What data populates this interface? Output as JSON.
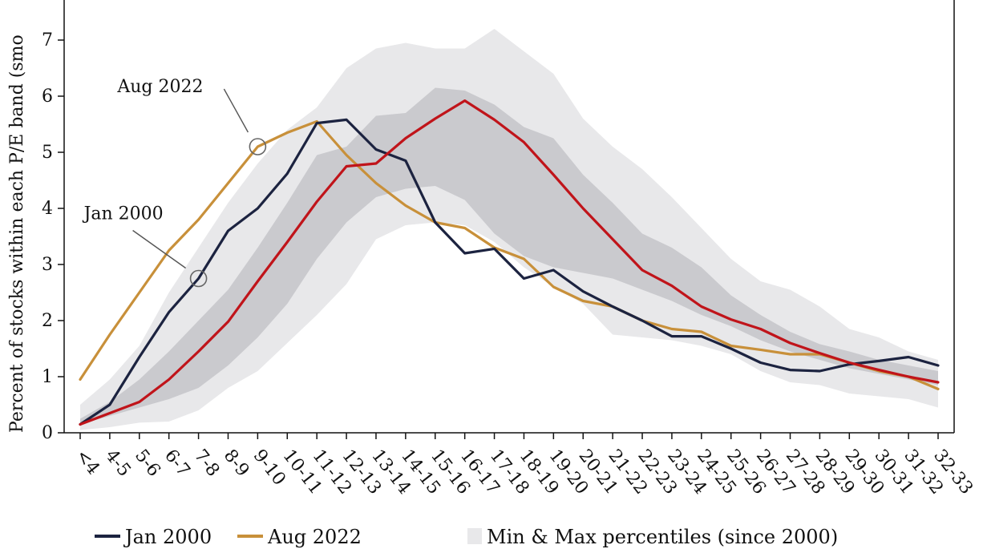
{
  "chart_data": {
    "type": "line",
    "ylabel": "Percent of stocks within each P/E band (smo",
    "ylim": [
      0,
      7.7
    ],
    "yticks": [
      "0",
      "1",
      "2",
      "3",
      "4",
      "5",
      "6",
      "7"
    ],
    "categories": [
      "<4",
      "4-5",
      "5-6",
      "6-7",
      "7-8",
      "8-9",
      "9-10",
      "10-11",
      "11-12",
      "12-13",
      "13-14",
      "14-15",
      "15-16",
      "16-17",
      "17-18",
      "18-19",
      "19-20",
      "20-21",
      "21-22",
      "22-23",
      "23-24",
      "24-25",
      "25-26",
      "26-27",
      "27-28",
      "28-29",
      "29-30",
      "30-31",
      "31-32",
      "32-33"
    ],
    "series": [
      {
        "name": "Jan 2000",
        "color": "#1c2340",
        "values": [
          0.15,
          0.5,
          1.35,
          2.15,
          2.75,
          3.6,
          4.0,
          4.62,
          5.52,
          5.58,
          5.05,
          4.85,
          3.75,
          3.2,
          3.28,
          2.75,
          2.9,
          2.52,
          2.25,
          2.0,
          1.72,
          1.72,
          1.5,
          1.25,
          1.12,
          1.1,
          1.22,
          1.28,
          1.35,
          1.2
        ]
      },
      {
        "name": "Aug 2022",
        "color": "#c8903a",
        "values": [
          0.95,
          1.75,
          2.5,
          3.25,
          3.8,
          4.45,
          5.1,
          5.35,
          5.55,
          4.95,
          4.45,
          4.05,
          3.75,
          3.65,
          3.3,
          3.1,
          2.6,
          2.35,
          2.25,
          2.0,
          1.85,
          1.8,
          1.55,
          1.48,
          1.4,
          1.4,
          1.25,
          1.1,
          1.0,
          0.78
        ]
      },
      {
        "name": "",
        "color": "#c0141a",
        "values": [
          0.15,
          0.35,
          0.55,
          0.95,
          1.45,
          1.98,
          2.7,
          3.4,
          4.12,
          4.75,
          4.8,
          5.25,
          5.6,
          5.92,
          5.58,
          5.18,
          4.6,
          4.0,
          3.45,
          2.9,
          2.62,
          2.25,
          2.02,
          1.85,
          1.6,
          1.42,
          1.25,
          1.12,
          1.0,
          0.9
        ]
      }
    ],
    "bands": [
      {
        "name": "Min & Max percentiles (since 2000)",
        "color": "#e8e8ea",
        "lower": [
          0.05,
          0.1,
          0.18,
          0.2,
          0.4,
          0.8,
          1.1,
          1.6,
          2.1,
          2.65,
          3.45,
          3.7,
          3.75,
          3.7,
          3.4,
          2.95,
          2.6,
          2.3,
          1.75,
          1.7,
          1.65,
          1.55,
          1.4,
          1.1,
          0.9,
          0.85,
          0.7,
          0.65,
          0.6,
          0.45
        ],
        "upper": [
          0.5,
          0.95,
          1.55,
          2.5,
          3.3,
          4.1,
          4.8,
          5.4,
          5.8,
          6.5,
          6.85,
          6.95,
          6.85,
          6.85,
          7.2,
          6.8,
          6.4,
          5.6,
          5.1,
          4.7,
          4.2,
          3.65,
          3.1,
          2.7,
          2.55,
          2.25,
          1.85,
          1.7,
          1.45,
          1.3
        ]
      },
      {
        "name": "",
        "color": "#cacace",
        "lower": [
          0.15,
          0.3,
          0.45,
          0.6,
          0.8,
          1.2,
          1.7,
          2.3,
          3.1,
          3.75,
          4.2,
          4.35,
          4.4,
          4.15,
          3.55,
          3.15,
          2.95,
          2.85,
          2.75,
          2.55,
          2.35,
          2.1,
          1.9,
          1.65,
          1.45,
          1.3,
          1.15,
          1.05,
          0.95,
          0.85
        ]
      },
      {
        "name": "",
        "color": "#cacace",
        "upper": [
          0.25,
          0.55,
          0.95,
          1.45,
          2.0,
          2.55,
          3.3,
          4.1,
          4.95,
          5.1,
          5.65,
          5.7,
          6.15,
          6.1,
          5.85,
          5.45,
          5.25,
          4.6,
          4.1,
          3.55,
          3.3,
          2.95,
          2.45,
          2.1,
          1.8,
          1.58,
          1.45,
          1.3,
          1.2,
          1.1
        ]
      }
    ],
    "annotations": [
      {
        "text": "Aug 2022",
        "series": "Aug 2022",
        "index": 6
      },
      {
        "text": "Jan 2000",
        "series": "Jan 2000",
        "index": 4
      }
    ],
    "legend": {
      "position": "bottom",
      "items": [
        {
          "label": "Jan 2000",
          "kind": "line",
          "color": "#1c2340"
        },
        {
          "label": "Aug 2022",
          "kind": "line",
          "color": "#c8903a"
        },
        {
          "label": "Min & Max percentiles (since 2000)",
          "kind": "box",
          "color": "#e8e8ea"
        }
      ]
    },
    "grid": false
  }
}
